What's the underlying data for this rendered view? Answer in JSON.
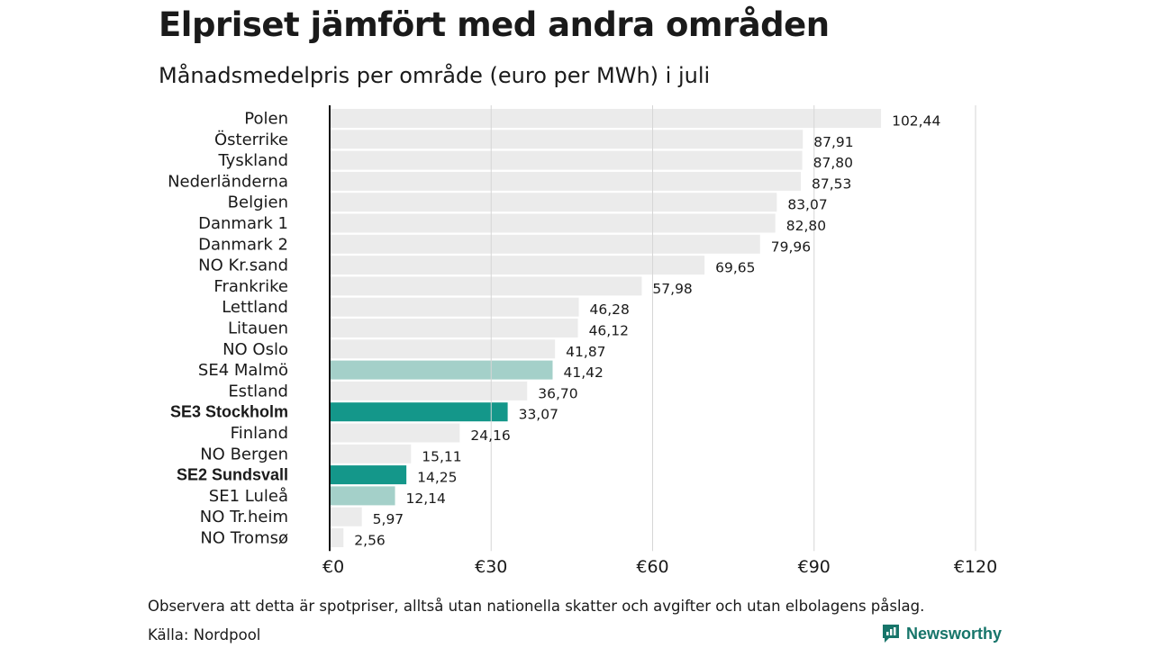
{
  "header": {
    "title": "Elpriset jämfört med andra områden",
    "subtitle": "Månadsmedelpris per område (euro per MWh) i juli"
  },
  "footer": {
    "note": "Observera att detta är spotpriser, alltså utan nationella skatter och avgifter och utan elbolagens påslag.",
    "source": "Källa: Nordpool",
    "brand": "Newsworthy"
  },
  "colors": {
    "bar_default": "#ebebeb",
    "bar_highlight": "#14978a",
    "bar_secondary": "#a4d0c9",
    "gridline": "#d6d6d6",
    "axis": "#111111",
    "brand": "#17756a"
  },
  "chart_data": {
    "type": "bar",
    "orientation": "horizontal",
    "categories": [
      "Polen",
      "Österrike",
      "Tyskland",
      "Nederländerna",
      "Belgien",
      "Danmark  1",
      "Danmark  2",
      "NO Kr.sand",
      "Frankrike",
      "Lettland",
      "Litauen",
      "NO Oslo",
      "SE4  Malmö",
      "Estland",
      "SE3 Stockholm",
      "Finland",
      "NO Bergen",
      "SE2 Sundsvall",
      "SE1  Luleå",
      "NO Tr.heim",
      "NO Tromsø"
    ],
    "values": [
      102.44,
      87.91,
      87.8,
      87.53,
      83.07,
      82.8,
      79.96,
      69.65,
      57.98,
      46.28,
      46.12,
      41.87,
      41.42,
      36.7,
      33.07,
      24.16,
      15.11,
      14.25,
      12.14,
      5.97,
      2.56
    ],
    "value_labels": [
      "102,44",
      "87,91",
      "87,80",
      "87,53",
      "83,07",
      "82,80",
      "79,96",
      "69,65",
      "57,98",
      "46,28",
      "46,12",
      "41,87",
      "41,42",
      "36,70",
      "33,07",
      "24,16",
      "15,11",
      "14,25",
      "12,14",
      "5,97",
      "2,56"
    ],
    "highlight": [
      "none",
      "none",
      "none",
      "none",
      "none",
      "none",
      "none",
      "none",
      "none",
      "none",
      "none",
      "none",
      "secondary",
      "none",
      "primary",
      "none",
      "none",
      "primary",
      "secondary",
      "none",
      "none"
    ],
    "xlim": [
      0,
      120
    ],
    "xticks": [
      0,
      30,
      60,
      90,
      120
    ],
    "xtick_labels": [
      "€0",
      "€30",
      "€60",
      "€90",
      "€120"
    ],
    "grid": true,
    "xlabel": "",
    "ylabel": ""
  }
}
